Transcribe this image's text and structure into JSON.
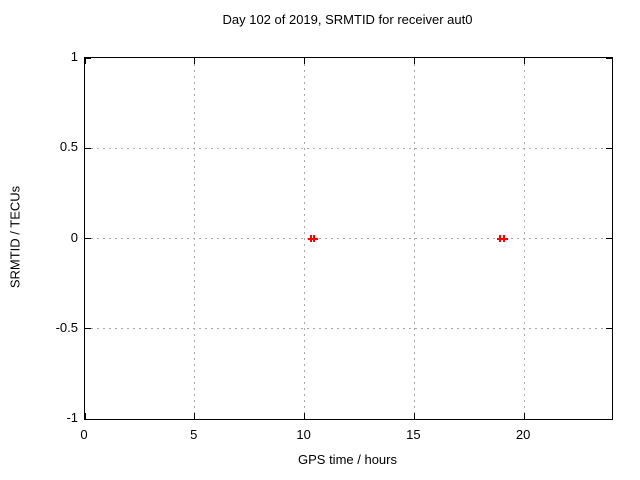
{
  "chart_data": {
    "type": "scatter",
    "title": "Day 102 of 2019, SRMTID for receiver aut0",
    "xlabel": "GPS time / hours",
    "ylabel": "SRMTID / TECUs",
    "xlim": [
      0,
      24
    ],
    "ylim": [
      -1,
      1
    ],
    "xticks": [
      0,
      5,
      10,
      15,
      20
    ],
    "xtick_labels": [
      "0",
      "5",
      "10",
      "15",
      "20"
    ],
    "yticks": [
      1,
      0.5,
      0,
      -0.5,
      -1
    ],
    "ytick_labels": [
      "1",
      "0.5",
      "0",
      "-0.5",
      "-1"
    ],
    "grid": true,
    "grid_style": "dashed",
    "grid_color": "#a8a8a8",
    "border_color": "#000000",
    "background_color": "#ffffff",
    "marker": "plus",
    "marker_color": "#ff0000",
    "series": [
      {
        "name": "SRMTID",
        "points": [
          {
            "x": 10.3,
            "y": 0
          },
          {
            "x": 10.45,
            "y": 0
          },
          {
            "x": 18.9,
            "y": 0
          },
          {
            "x": 19.1,
            "y": 0
          }
        ]
      }
    ]
  }
}
